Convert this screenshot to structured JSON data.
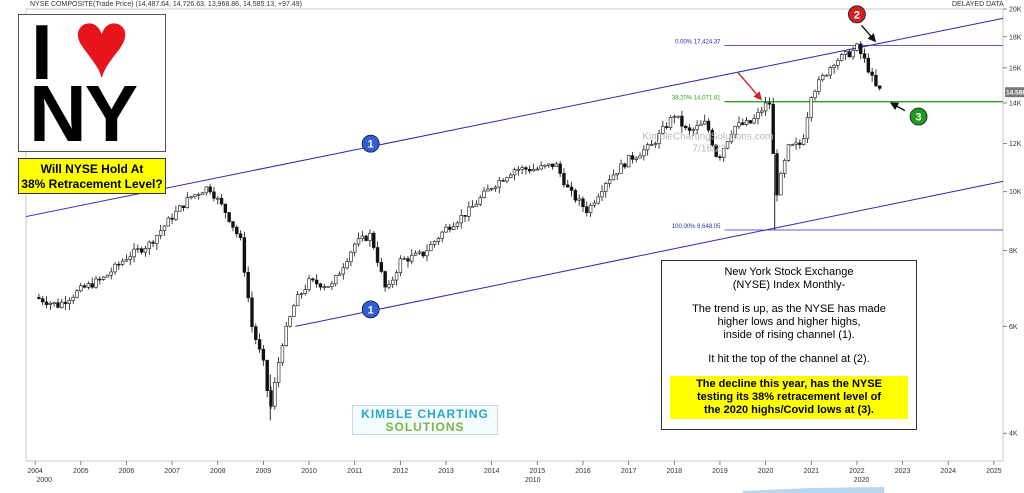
{
  "header": {
    "symbol_text": "NYSE COMPOSITE(Trade Price) (14,487.64, 14,726.63, 13,968.86, 14,585.13, +97.49)",
    "delayed": "DELAYED DATA"
  },
  "logo": {
    "letter_i": "I",
    "heart": "♥",
    "letters_ny": "NY"
  },
  "question": {
    "line1": "Will NYSE Hold At",
    "line2": "38% Retracement Level?"
  },
  "description": {
    "title1": "New York Stock Exchange",
    "title2": "(NYSE) Index Monthly-",
    "p1_l1": "The trend is up, as the NYSE has made",
    "p1_l2": "higher lows and higher highs,",
    "p1_l3": "inside of rising channel (1).",
    "p2": "It hit the top of the channel at (2).",
    "hl_l1": "The decline this year, has the NYSE",
    "hl_l2": "testing its 38% retracement level of",
    "hl_l3": "the 2020 highs/Covid lows at (3)."
  },
  "watermark": {
    "line1": "KimbleChartingSolutions.com",
    "line2": "7/18/22"
  },
  "brand": {
    "line1": "KIMBLE CHARTING",
    "line2": "SOLUTIONS"
  },
  "colors": {
    "channel": "#2b2bb0",
    "fib_green": "#2e9e2e",
    "fib_blue": "#2b2bb0",
    "marker_blue": "#2f5fd8",
    "marker_red": "#d42020",
    "marker_green": "#1f9a1f",
    "price_tag": "#7a7a7a"
  },
  "chart_data": {
    "type": "candlestick",
    "scale": "log",
    "ylim": [
      3600,
      20000
    ],
    "yticks": [
      4000,
      6000,
      8000,
      10000,
      12000,
      14000,
      16000,
      18000,
      20000
    ],
    "ytick_labels": [
      "4K",
      "6K",
      "8K",
      "10K",
      "12K",
      "14K",
      "16K",
      "18K",
      "20K"
    ],
    "xlim": [
      2003.8,
      2025.2
    ],
    "xticks": [
      2004,
      2005,
      2006,
      2007,
      2008,
      2009,
      2010,
      2011,
      2012,
      2013,
      2014,
      2015,
      2016,
      2017,
      2018,
      2019,
      2020,
      2021,
      2022,
      2023,
      2024,
      2025
    ],
    "xtick_labels": [
      "2004",
      "2005",
      "2006",
      "2007",
      "2008",
      "2009",
      "2010",
      "2011",
      "2012",
      "2013",
      "2014",
      "2015",
      "2016",
      "2017",
      "2018",
      "2019",
      "2020",
      "2021",
      "2022",
      "2023",
      "2024",
      "2025"
    ],
    "decade_labels": [
      {
        "x": 2004.2,
        "label": "2000"
      },
      {
        "x": 2014.9,
        "label": "2010"
      },
      {
        "x": 2022.1,
        "label": "2020"
      }
    ],
    "last_price": 14585.13,
    "last_price_label": "14.58K",
    "price_path": [
      [
        2004.0,
        6700
      ],
      [
        2004.5,
        6500
      ],
      [
        2005.0,
        6900
      ],
      [
        2005.5,
        7200
      ],
      [
        2006.0,
        7800
      ],
      [
        2006.5,
        8200
      ],
      [
        2007.0,
        9100
      ],
      [
        2007.4,
        9800
      ],
      [
        2007.8,
        10200
      ],
      [
        2008.2,
        9200
      ],
      [
        2008.5,
        8300
      ],
      [
        2008.75,
        6000
      ],
      [
        2009.0,
        5200
      ],
      [
        2009.15,
        4350
      ],
      [
        2009.4,
        5600
      ],
      [
        2009.7,
        6600
      ],
      [
        2010.0,
        7100
      ],
      [
        2010.5,
        7000
      ],
      [
        2011.0,
        8200
      ],
      [
        2011.35,
        8500
      ],
      [
        2011.7,
        6800
      ],
      [
        2012.0,
        7700
      ],
      [
        2012.5,
        7900
      ],
      [
        2013.0,
        8700
      ],
      [
        2013.5,
        9300
      ],
      [
        2014.0,
        10200
      ],
      [
        2014.5,
        10900
      ],
      [
        2015.0,
        10900
      ],
      [
        2015.4,
        11100
      ],
      [
        2015.7,
        10000
      ],
      [
        2016.1,
        9300
      ],
      [
        2016.5,
        10400
      ],
      [
        2017.0,
        11300
      ],
      [
        2017.5,
        11900
      ],
      [
        2018.0,
        13400
      ],
      [
        2018.3,
        12500
      ],
      [
        2018.7,
        13000
      ],
      [
        2018.95,
        11300
      ],
      [
        2019.3,
        12800
      ],
      [
        2019.7,
        13000
      ],
      [
        2020.0,
        13900
      ],
      [
        2020.1,
        14000
      ],
      [
        2020.22,
        9800
      ],
      [
        2020.5,
        11800
      ],
      [
        2020.8,
        12000
      ],
      [
        2021.0,
        14500
      ],
      [
        2021.5,
        16400
      ],
      [
        2021.9,
        17000
      ],
      [
        2022.0,
        17300
      ],
      [
        2022.2,
        16300
      ],
      [
        2022.4,
        14900
      ],
      [
        2022.55,
        14585
      ]
    ],
    "channel": {
      "upper": [
        [
          2003.8,
          9100
        ],
        [
          2025.2,
          19300
        ]
      ],
      "lower": [
        [
          2009.7,
          6000
        ],
        [
          2025.2,
          10400
        ]
      ]
    },
    "fib_levels": [
      {
        "label": "0.00% 17,424.37",
        "value": 17424.37,
        "x_start": 2019.1,
        "x_end": 2025.2
      },
      {
        "label": "38.20% 14,071.81",
        "value": 14071.81,
        "x_start": 2019.1,
        "x_end": 2025.2
      },
      {
        "label": "100.00% 8,648.05",
        "value": 8648.05,
        "x_start": 2019.1,
        "x_end": 2025.2
      }
    ],
    "markers": [
      {
        "label": "1",
        "x": 2011.35,
        "y": 12000,
        "color": "blue"
      },
      {
        "label": "1",
        "x": 2011.35,
        "y": 6400,
        "color": "blue"
      },
      {
        "label": "2",
        "x": 2022.0,
        "y": 19600,
        "color": "red"
      },
      {
        "label": "3",
        "x": 2023.35,
        "y": 13300,
        "color": "green"
      }
    ],
    "arrows": [
      {
        "from": [
          2019.4,
          15700
        ],
        "to": [
          2019.9,
          14200
        ],
        "color": "red"
      },
      {
        "from": [
          2022.1,
          18800
        ],
        "to": [
          2022.4,
          17700
        ],
        "color": "black"
      },
      {
        "from": [
          2023.05,
          13600
        ],
        "to": [
          2022.75,
          14000
        ],
        "color": "black"
      }
    ]
  }
}
